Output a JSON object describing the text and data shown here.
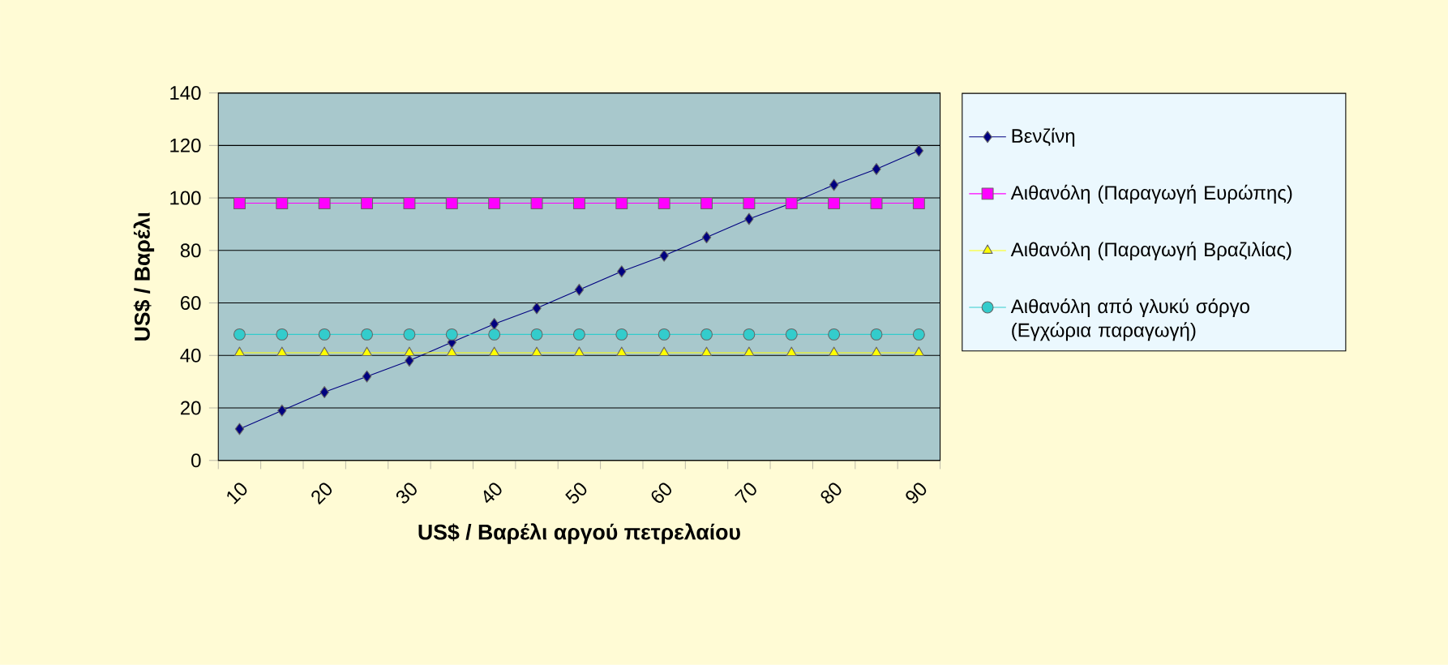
{
  "chart_data": {
    "type": "line",
    "xlabel": "US$ / Βαρέλι αργού πετρελαίου",
    "ylabel": "US$ / Βαρέλι",
    "categories": [
      "10",
      null,
      "20",
      null,
      "30",
      null,
      "40",
      null,
      "50",
      null,
      "60",
      null,
      "70",
      null,
      "80",
      null,
      "90"
    ],
    "series": [
      {
        "name": "Βενζίνη",
        "color": "#000080",
        "marker": "diamond",
        "values": [
          12,
          19,
          26,
          32,
          38,
          45,
          52,
          58,
          65,
          72,
          78,
          85,
          92,
          98,
          105,
          111,
          118
        ]
      },
      {
        "name": "Αιθανόλη (Παραγωγή Ευρώπης)",
        "color": "#ff00ff",
        "marker": "square",
        "values": [
          98,
          98,
          98,
          98,
          98,
          98,
          98,
          98,
          98,
          98,
          98,
          98,
          98,
          98,
          98,
          98,
          98
        ]
      },
      {
        "name": "Αιθανόλη (Παραγωγή Βραζιλίας)",
        "color": "#ffff00",
        "marker": "triangle",
        "values": [
          41,
          41,
          41,
          41,
          41,
          41,
          41,
          41,
          41,
          41,
          41,
          41,
          41,
          41,
          41,
          41,
          41
        ]
      },
      {
        "name": "Αιθανόλη από γλυκύ σόργο (Εγχώρια παραγωγή)",
        "color": "#33cccc",
        "marker": "circle",
        "values": [
          48,
          48,
          48,
          48,
          48,
          48,
          48,
          48,
          48,
          48,
          48,
          48,
          48,
          48,
          48,
          48,
          48
        ]
      }
    ],
    "ylim": [
      0,
      140
    ],
    "yticks": [
      0,
      20,
      40,
      60,
      80,
      100,
      120,
      140
    ],
    "grid": "y",
    "legend": "right"
  }
}
